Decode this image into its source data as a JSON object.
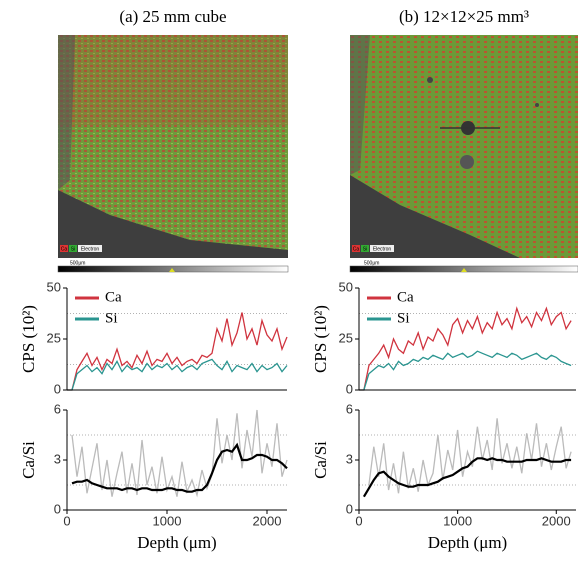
{
  "panels": [
    {
      "title": "(a) 25 mm cube",
      "map_labels": [
        "Ca",
        "Si",
        "Electron"
      ],
      "scale_bar": "500μm"
    },
    {
      "title": "(b) 12×12×25 mm³",
      "map_labels": [
        "Ca",
        "Si",
        "Electron"
      ],
      "scale_bar": "500μm"
    }
  ],
  "chart_data": [
    {
      "type": "line",
      "ylabel": "CPS (10²)",
      "xlim": [
        0,
        2200
      ],
      "ylim": [
        0,
        50
      ],
      "yticks": [
        0,
        25,
        50
      ],
      "minor_yticks": [
        12.5,
        37.5
      ],
      "legend": "upper left",
      "x": [
        0,
        50,
        100,
        150,
        200,
        250,
        300,
        350,
        400,
        450,
        500,
        550,
        600,
        650,
        700,
        750,
        800,
        850,
        900,
        950,
        1000,
        1050,
        1100,
        1150,
        1200,
        1250,
        1300,
        1350,
        1400,
        1450,
        1500,
        1550,
        1600,
        1650,
        1700,
        1750,
        1800,
        1850,
        1900,
        1950,
        2000,
        2050,
        2100,
        2150,
        2200
      ],
      "series": [
        {
          "name": "Ca",
          "color": "#d0343f",
          "values": [
            0,
            0,
            10,
            14,
            18,
            12,
            16,
            10,
            15,
            13,
            20,
            12,
            14,
            11,
            17,
            13,
            19,
            12,
            15,
            14,
            18,
            13,
            16,
            12,
            14,
            15,
            13,
            17,
            16,
            18,
            30,
            24,
            35,
            22,
            28,
            38,
            25,
            30,
            22,
            34,
            27,
            24,
            30,
            20,
            26
          ]
        },
        {
          "name": "Si",
          "color": "#2a9590",
          "values": [
            0,
            0,
            8,
            10,
            12,
            9,
            11,
            8,
            13,
            10,
            14,
            9,
            12,
            10,
            11,
            9,
            13,
            10,
            12,
            11,
            13,
            10,
            12,
            9,
            11,
            12,
            10,
            13,
            14,
            15,
            12,
            10,
            14,
            9,
            12,
            11,
            10,
            13,
            9,
            12,
            10,
            11,
            13,
            9,
            12
          ]
        }
      ]
    },
    {
      "type": "line",
      "ylabel": "Ca/Si",
      "xlabel": "Depth (μm)",
      "xlim": [
        0,
        2200
      ],
      "xticks": [
        0,
        1000,
        2000
      ],
      "ylim": [
        0,
        6
      ],
      "yticks": [
        0,
        3,
        6
      ],
      "minor_yticks": [
        1.5,
        4.5
      ],
      "x": [
        0,
        50,
        100,
        150,
        200,
        250,
        300,
        350,
        400,
        450,
        500,
        550,
        600,
        650,
        700,
        750,
        800,
        850,
        900,
        950,
        1000,
        1050,
        1100,
        1150,
        1200,
        1250,
        1300,
        1350,
        1400,
        1450,
        1500,
        1550,
        1600,
        1650,
        1700,
        1750,
        1800,
        1850,
        1900,
        1950,
        2000,
        2050,
        2100,
        2150,
        2200
      ],
      "series": [
        {
          "color": "#bbbbbb",
          "values": [
            null,
            4.5,
            2.0,
            3.8,
            1.0,
            2.5,
            4.0,
            1.2,
            3.0,
            0.8,
            2.2,
            3.5,
            1.0,
            2.8,
            0.9,
            4.2,
            1.5,
            2.6,
            1.0,
            3.2,
            1.2,
            2.0,
            0.8,
            2.9,
            1.1,
            1.8,
            0.9,
            2.4,
            1.3,
            2.1,
            5.5,
            2.8,
            4.5,
            3.0,
            5.8,
            2.5,
            4.8,
            3.2,
            6.0,
            2.2,
            4.0,
            2.6,
            5.2,
            2.0,
            3.0
          ]
        },
        {
          "color": "#000000",
          "values": [
            null,
            1.6,
            1.7,
            1.7,
            1.8,
            1.6,
            1.5,
            1.4,
            1.3,
            1.3,
            1.3,
            1.2,
            1.3,
            1.3,
            1.2,
            1.3,
            1.3,
            1.2,
            1.2,
            1.2,
            1.3,
            1.3,
            1.2,
            1.2,
            1.1,
            1.1,
            1.2,
            1.2,
            1.5,
            2.2,
            3.0,
            3.5,
            3.6,
            3.5,
            3.9,
            3.0,
            3.0,
            3.1,
            3.3,
            3.3,
            3.2,
            3.0,
            3.0,
            2.8,
            2.5
          ]
        }
      ]
    },
    {
      "type": "line",
      "ylabel": "CPS (10²)",
      "xlim": [
        0,
        2200
      ],
      "ylim": [
        0,
        50
      ],
      "yticks": [
        0,
        25,
        50
      ],
      "minor_yticks": [
        12.5,
        37.5
      ],
      "legend": "upper left",
      "x": [
        0,
        50,
        100,
        150,
        200,
        250,
        300,
        350,
        400,
        450,
        500,
        550,
        600,
        650,
        700,
        750,
        800,
        850,
        900,
        950,
        1000,
        1050,
        1100,
        1150,
        1200,
        1250,
        1300,
        1350,
        1400,
        1450,
        1500,
        1550,
        1600,
        1650,
        1700,
        1750,
        1800,
        1850,
        1900,
        1950,
        2000,
        2050,
        2100,
        2150
      ],
      "series": [
        {
          "name": "Ca",
          "color": "#d0343f",
          "values": [
            0,
            0,
            12,
            15,
            18,
            22,
            16,
            25,
            20,
            18,
            24,
            22,
            28,
            20,
            26,
            24,
            30,
            27,
            22,
            32,
            35,
            28,
            34,
            30,
            36,
            28,
            33,
            30,
            38,
            32,
            35,
            30,
            40,
            33,
            36,
            31,
            38,
            34,
            40,
            32,
            36,
            38,
            30,
            34
          ]
        },
        {
          "name": "Si",
          "color": "#2a9590",
          "values": [
            0,
            0,
            8,
            10,
            12,
            11,
            13,
            10,
            14,
            12,
            13,
            15,
            14,
            16,
            15,
            17,
            16,
            15,
            18,
            16,
            17,
            18,
            16,
            17,
            19,
            18,
            17,
            16,
            18,
            17,
            16,
            18,
            17,
            15,
            16,
            17,
            18,
            16,
            15,
            17,
            16,
            14,
            13,
            12
          ]
        }
      ]
    },
    {
      "type": "line",
      "ylabel": "Ca/Si",
      "xlabel": "Depth (μm)",
      "xlim": [
        0,
        2200
      ],
      "xticks": [
        0,
        1000,
        2000
      ],
      "ylim": [
        0,
        6
      ],
      "yticks": [
        0,
        3,
        6
      ],
      "minor_yticks": [
        1.5,
        4.5
      ],
      "x": [
        0,
        50,
        100,
        150,
        200,
        250,
        300,
        350,
        400,
        450,
        500,
        550,
        600,
        650,
        700,
        750,
        800,
        850,
        900,
        950,
        1000,
        1050,
        1100,
        1150,
        1200,
        1250,
        1300,
        1350,
        1400,
        1450,
        1500,
        1550,
        1600,
        1650,
        1700,
        1750,
        1800,
        1850,
        1900,
        1950,
        2000,
        2050,
        2100,
        2150
      ],
      "series": [
        {
          "color": "#bbbbbb",
          "values": [
            null,
            null,
            1.5,
            3.8,
            2.0,
            4.0,
            1.2,
            2.8,
            1.0,
            3.5,
            1.3,
            2.5,
            1.1,
            3.0,
            1.5,
            2.2,
            4.5,
            1.8,
            3.6,
            2.4,
            4.8,
            2.0,
            3.5,
            2.6,
            5.0,
            3.0,
            4.2,
            2.4,
            5.5,
            2.8,
            4.0,
            2.5,
            3.8,
            2.2,
            4.6,
            3.0,
            5.2,
            2.6,
            4.0,
            2.4,
            3.8,
            5.0,
            2.5,
            3.5
          ]
        },
        {
          "color": "#000000",
          "values": [
            null,
            0.8,
            1.3,
            1.8,
            2.2,
            2.3,
            2.0,
            1.8,
            1.6,
            1.5,
            1.4,
            1.4,
            1.5,
            1.5,
            1.5,
            1.6,
            1.7,
            1.9,
            2.0,
            2.1,
            2.3,
            2.5,
            2.6,
            2.9,
            3.1,
            3.1,
            3.0,
            3.1,
            3.0,
            3.0,
            2.9,
            2.9,
            2.9,
            2.9,
            3.0,
            3.0,
            3.0,
            3.1,
            3.0,
            2.9,
            2.9,
            2.9,
            3.0,
            3.0
          ]
        }
      ]
    }
  ]
}
